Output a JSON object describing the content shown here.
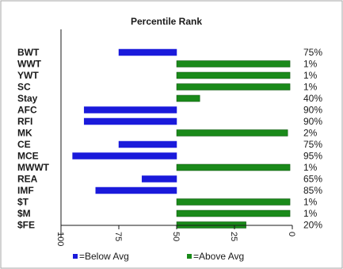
{
  "chart_data": {
    "type": "bar",
    "orientation": "horizontal",
    "title": "Percentile Rank",
    "categories": [
      "BWT",
      "WWT",
      "YWT",
      "SC",
      "Stay",
      "AFC",
      "RFI",
      "MK",
      "CE",
      "MCE",
      "MWWT",
      "REA",
      "IMF",
      "$T",
      "$M",
      "$FE"
    ],
    "values": [
      75,
      1,
      1,
      1,
      40,
      90,
      90,
      2,
      75,
      95,
      1,
      65,
      85,
      1,
      1,
      20
    ],
    "value_labels": [
      "75%",
      "1%",
      "1%",
      "1%",
      "40%",
      "90%",
      "90%",
      "2%",
      "75%",
      "95%",
      "1%",
      "65%",
      "85%",
      "1%",
      "1%",
      "20%"
    ],
    "series_groups": [
      "below",
      "above",
      "above",
      "above",
      "above",
      "below",
      "below",
      "above",
      "below",
      "below",
      "above",
      "below",
      "below",
      "above",
      "above",
      "above"
    ],
    "xlim": [
      100,
      0
    ],
    "x_ticks": [
      "100",
      "75",
      "50",
      "25",
      "0"
    ],
    "x_tick_values": [
      100,
      75,
      50,
      25,
      0
    ],
    "reference_value": 50,
    "grid": false,
    "legend": {
      "placement": "bottom",
      "entries": [
        {
          "key": "below",
          "label": "=Below Avg",
          "color": "#1a1adb"
        },
        {
          "key": "above",
          "label": "=Above Avg",
          "color": "#1a8a1a"
        }
      ]
    },
    "colors": {
      "below": "#1a1adb",
      "above": "#1a8a1a",
      "above_edge": "#0b4f0b"
    }
  }
}
